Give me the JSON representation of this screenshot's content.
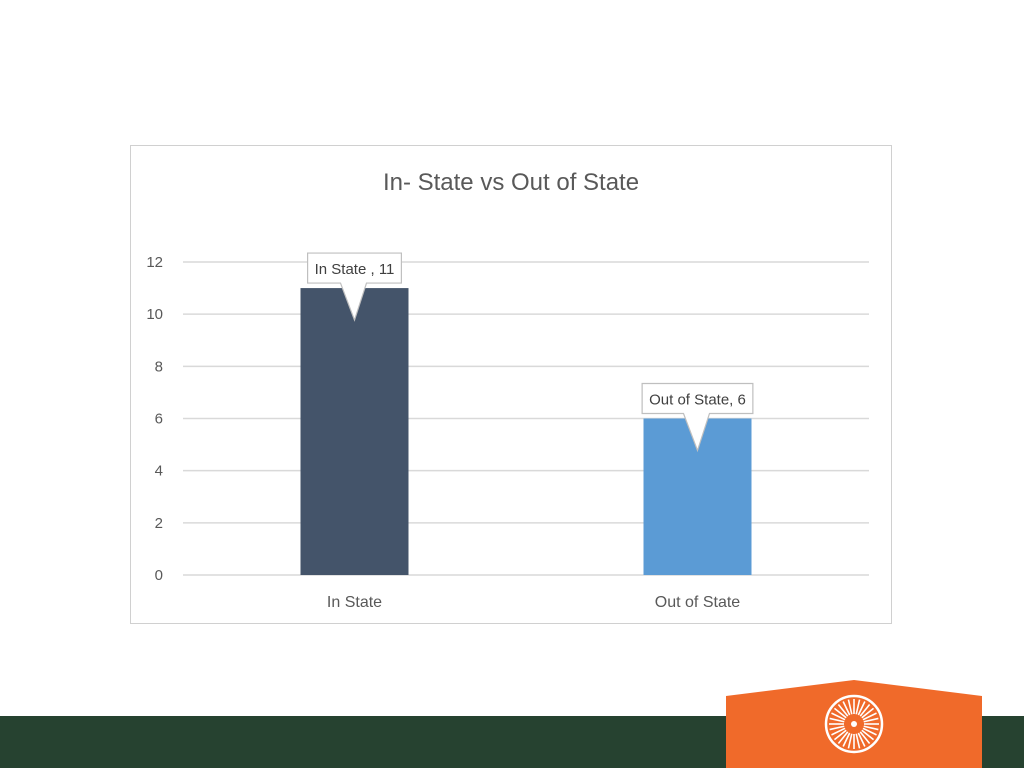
{
  "chart_data": {
    "type": "bar",
    "title": "In- State vs Out of State",
    "categories": [
      "In State",
      "Out of State"
    ],
    "values": [
      11,
      6
    ],
    "data_labels": [
      "In State , 11",
      "Out of State, 6"
    ],
    "bar_colors": [
      "#44546a",
      "#5b9bd5"
    ],
    "ylim": [
      0,
      12
    ],
    "yticks": [
      0,
      2,
      4,
      6,
      8,
      10,
      12
    ],
    "grid": true,
    "legend": "none"
  },
  "branding": {
    "footer_color": "#264230",
    "logo_color": "#f06a2a",
    "logo_icon": "sunburst-icon"
  }
}
